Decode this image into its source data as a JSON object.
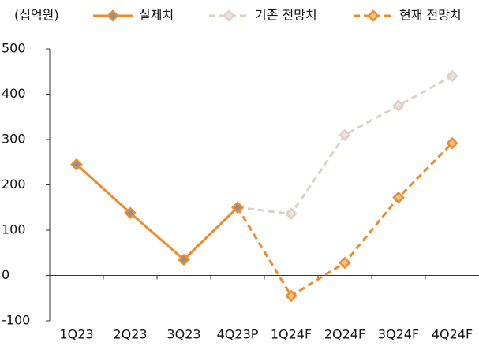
{
  "chart_data": {
    "type": "line",
    "unit_label": "(십억원)",
    "categories": [
      "1Q23",
      "2Q23",
      "3Q23",
      "4Q23P",
      "1Q24F",
      "2Q24F",
      "3Q24F",
      "4Q24F"
    ],
    "series": [
      {
        "name": "실제치",
        "color": "#ef8a2a",
        "marker_fill": "#8592a6",
        "dashed": false,
        "values": [
          245,
          138,
          35,
          150,
          null,
          null,
          null,
          null
        ]
      },
      {
        "name": "기존 전망치",
        "color": "#d8d3c2",
        "marker_fill": "#f1dfe8",
        "dashed": true,
        "values": [
          null,
          null,
          null,
          150,
          136,
          310,
          375,
          440
        ]
      },
      {
        "name": "현재 전망치",
        "color": "#ef8a2a",
        "marker_fill": "#f7c28c",
        "dashed": true,
        "values": [
          null,
          null,
          null,
          150,
          -45,
          28,
          172,
          292
        ]
      }
    ],
    "ylim": [
      -100,
      500
    ],
    "yticks": [
      -100,
      0,
      100,
      200,
      300,
      400,
      500
    ],
    "legend": "top"
  }
}
